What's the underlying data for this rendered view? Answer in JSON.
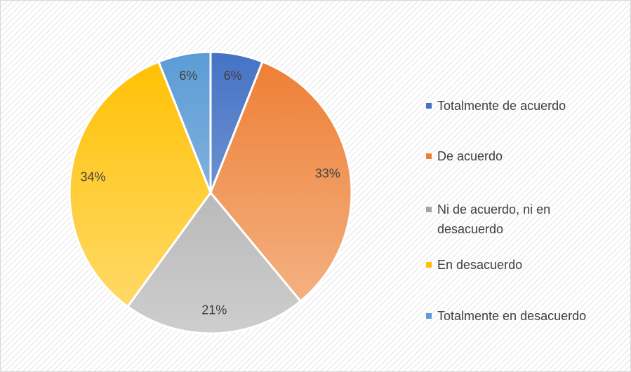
{
  "chart_data": {
    "type": "pie",
    "categories": [
      "Totalmente de acuerdo",
      "De acuerdo",
      "Ni de acuerdo, ni en desacuerdo",
      "En desacuerdo",
      "Totalmente en desacuerdo"
    ],
    "values": [
      6,
      33,
      21,
      34,
      6
    ],
    "value_labels": [
      "6%",
      "33%",
      "21%",
      "34%",
      "6%"
    ],
    "colors": [
      "#4472c4",
      "#ed7d31",
      "#a5a5a5",
      "#ffc000",
      "#5b9bd5"
    ],
    "legend": "right"
  }
}
